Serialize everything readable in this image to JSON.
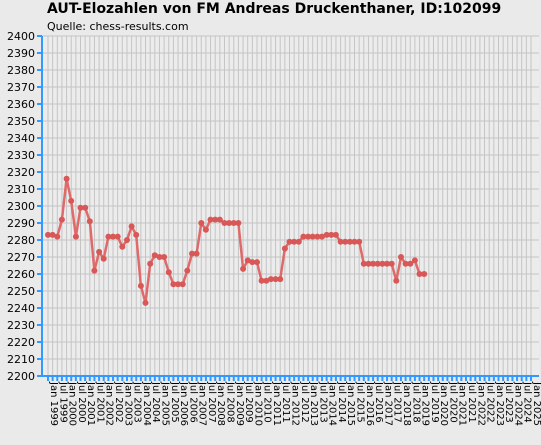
{
  "chart_data": {
    "type": "line",
    "title": "AUT-Elozahlen von FM Andreas Druckenthaner, ID:102099",
    "subtitle": "Quelle: chess-results.com",
    "xlabel": "",
    "ylabel": "",
    "ylim": [
      2200,
      2400
    ],
    "ytick_step": 10,
    "grid": true,
    "colors": {
      "background": "#eaeaea",
      "plot_background": "#ececec",
      "grid": "#c4c4c4",
      "axis": "#3399ff",
      "line": "#e06a6a",
      "marker": "#d85858"
    },
    "x": [
      "Jan 1999",
      "Jul 1999",
      "Jan 2000",
      "Jul 2000",
      "Jan 2001",
      "Jul 2001",
      "Jan 2002",
      "Jul 2002",
      "Jan 2003",
      "Jul 2003",
      "Jan 2004",
      "Jul 2004",
      "Jan 2005",
      "Jul 2005",
      "Jan 2006",
      "Jul 2006",
      "Jan 2007",
      "Jul 2007",
      "Jan 2008",
      "Jul 2008",
      "Jan 2009",
      "Jul 2009",
      "Jan 2010",
      "Jul 2010",
      "Jan 2011",
      "Jul 2011",
      "Jan 2012",
      "Jul 2012",
      "Jan 2013",
      "Jul 2013",
      "Jan 2014",
      "Jul 2014",
      "Jan 2015",
      "Jul 2015",
      "Jan 2016",
      "Jul 2016",
      "Jan 2017",
      "Jul 2017",
      "Jan 2018",
      "Jul 2018",
      "Jan 2019",
      "Jul 2019",
      "Jan 2020",
      "Jul 2020",
      "Jan 2021",
      "Jul 2021",
      "Jan 2022",
      "Jul 2022",
      "Jan 2023",
      "Jul 2023",
      "Jan 2024",
      "Jul 2024",
      "Jan 2025"
    ],
    "series": [
      {
        "points": [
          [
            "Jan 1999",
            2283
          ],
          [
            "Apr 1999",
            2283
          ],
          [
            "Jul 1999",
            2282
          ],
          [
            "Oct 1999",
            2292
          ],
          [
            "Jan 2000",
            2316
          ],
          [
            "Apr 2000",
            2303
          ],
          [
            "Jul 2000",
            2282
          ],
          [
            "Oct 2000",
            2299
          ],
          [
            "Jan 2001",
            2299
          ],
          [
            "Apr 2001",
            2291
          ],
          [
            "Jul 2001",
            2262
          ],
          [
            "Oct 2001",
            2273
          ],
          [
            "Jan 2002",
            2269
          ],
          [
            "Apr 2002",
            2282
          ],
          [
            "Jul 2002",
            2282
          ],
          [
            "Oct 2002",
            2282
          ],
          [
            "Jan 2003",
            2276
          ],
          [
            "Apr 2003",
            2280
          ],
          [
            "Jul 2003",
            2288
          ],
          [
            "Oct 2003",
            2283
          ],
          [
            "Jan 2004",
            2253
          ],
          [
            "Apr 2004",
            2243
          ],
          [
            "Jul 2004",
            2266
          ],
          [
            "Oct 2004",
            2271
          ],
          [
            "Jan 2005",
            2270
          ],
          [
            "Apr 2005",
            2270
          ],
          [
            "Jul 2005",
            2261
          ],
          [
            "Oct 2005",
            2254
          ],
          [
            "Jan 2006",
            2254
          ],
          [
            "Apr 2006",
            2254
          ],
          [
            "Jul 2006",
            2262
          ],
          [
            "Oct 2006",
            2272
          ],
          [
            "Jan 2007",
            2272
          ],
          [
            "Apr 2007",
            2290
          ],
          [
            "Jul 2007",
            2286
          ],
          [
            "Oct 2007",
            2292
          ],
          [
            "Jan 2008",
            2292
          ],
          [
            "Apr 2008",
            2292
          ],
          [
            "Jul 2008",
            2290
          ],
          [
            "Oct 2008",
            2290
          ],
          [
            "Jan 2009",
            2290
          ],
          [
            "Apr 2009",
            2290
          ],
          [
            "Jul 2009",
            2263
          ],
          [
            "Oct 2009",
            2268
          ],
          [
            "Jan 2010",
            2267
          ],
          [
            "Apr 2010",
            2267
          ],
          [
            "Jul 2010",
            2256
          ],
          [
            "Oct 2010",
            2256
          ],
          [
            "Jan 2011",
            2257
          ],
          [
            "Apr 2011",
            2257
          ],
          [
            "Jul 2011",
            2257
          ],
          [
            "Oct 2011",
            2275
          ],
          [
            "Jan 2012",
            2279
          ],
          [
            "Apr 2012",
            2279
          ],
          [
            "Jul 2012",
            2279
          ],
          [
            "Oct 2012",
            2282
          ],
          [
            "Jan 2013",
            2282
          ],
          [
            "Apr 2013",
            2282
          ],
          [
            "Jul 2013",
            2282
          ],
          [
            "Oct 2013",
            2282
          ],
          [
            "Jan 2014",
            2283
          ],
          [
            "Apr 2014",
            2283
          ],
          [
            "Jul 2014",
            2283
          ],
          [
            "Oct 2014",
            2279
          ],
          [
            "Jan 2015",
            2279
          ],
          [
            "Apr 2015",
            2279
          ],
          [
            "Jul 2015",
            2279
          ],
          [
            "Oct 2015",
            2279
          ],
          [
            "Jan 2016",
            2266
          ],
          [
            "Apr 2016",
            2266
          ],
          [
            "Jul 2016",
            2266
          ],
          [
            "Oct 2016",
            2266
          ],
          [
            "Jan 2017",
            2266
          ],
          [
            "Apr 2017",
            2266
          ],
          [
            "Jul 2017",
            2266
          ],
          [
            "Oct 2017",
            2256
          ],
          [
            "Jan 2018",
            2270
          ],
          [
            "Apr 2018",
            2266
          ],
          [
            "Jul 2018",
            2266
          ],
          [
            "Oct 2018",
            2268
          ],
          [
            "Jan 2019",
            2260
          ],
          [
            "Apr 2019",
            2260
          ]
        ]
      }
    ]
  }
}
